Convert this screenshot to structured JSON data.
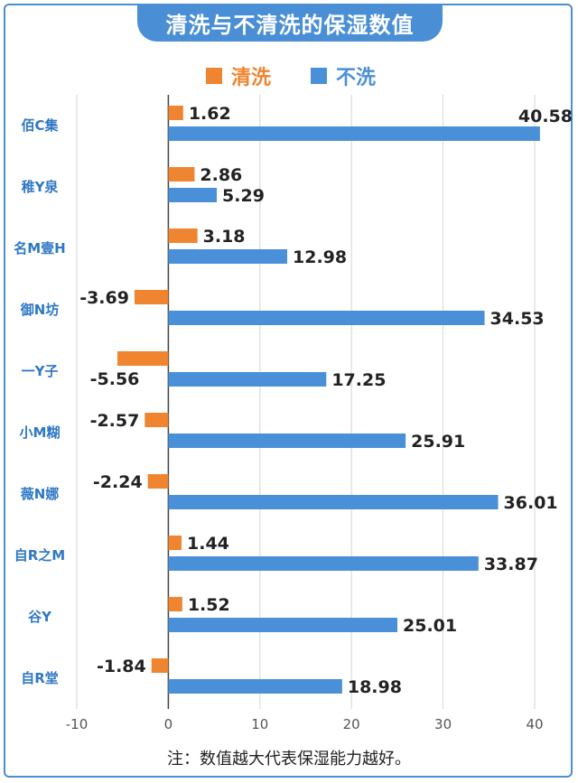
{
  "chart_data": {
    "type": "bar",
    "orientation": "horizontal",
    "title": "清洗与不清洗的保湿数值",
    "categories": [
      "佰C集",
      "稚Y泉",
      "名M壹H",
      "御N坊",
      "一Y子",
      "小M糊",
      "薇N娜",
      "自R之M",
      "谷Y",
      "自R堂"
    ],
    "series": [
      {
        "name": "清洗",
        "color": "#ef8431",
        "values": [
          1.62,
          2.86,
          3.18,
          -3.69,
          -5.56,
          -2.57,
          -2.24,
          1.44,
          1.52,
          -1.84
        ]
      },
      {
        "name": "不洗",
        "color": "#4a90d9",
        "values": [
          40.58,
          5.29,
          12.98,
          34.53,
          17.25,
          25.91,
          36.01,
          33.87,
          25.01,
          18.98
        ]
      }
    ],
    "value_labels": [
      [
        "1.62",
        "2.86",
        "3.18",
        "-3.69",
        "-5.56",
        "-2.57",
        "-2.24",
        "1.44",
        "1.52",
        "-1.84"
      ],
      [
        "40.58",
        "5.29",
        "12.98",
        "34.53",
        "17.25",
        "25.91",
        "36.01",
        "33.87",
        "25.01",
        "18.98"
      ]
    ],
    "xlim": [
      -10,
      40
    ],
    "xticks": [
      -10,
      0,
      10,
      20,
      30,
      40
    ],
    "xtick_labels": [
      "-10",
      "0",
      "10",
      "20",
      "30",
      "40"
    ],
    "grid": true,
    "legend_position": "top",
    "note": "注：数值越大代表保湿能力越好。"
  },
  "theme": {
    "accent": "#4a8fd6",
    "cleaned": "#ef8431",
    "uncleaned": "#4a90d9",
    "category_text": "#2f78c4"
  }
}
